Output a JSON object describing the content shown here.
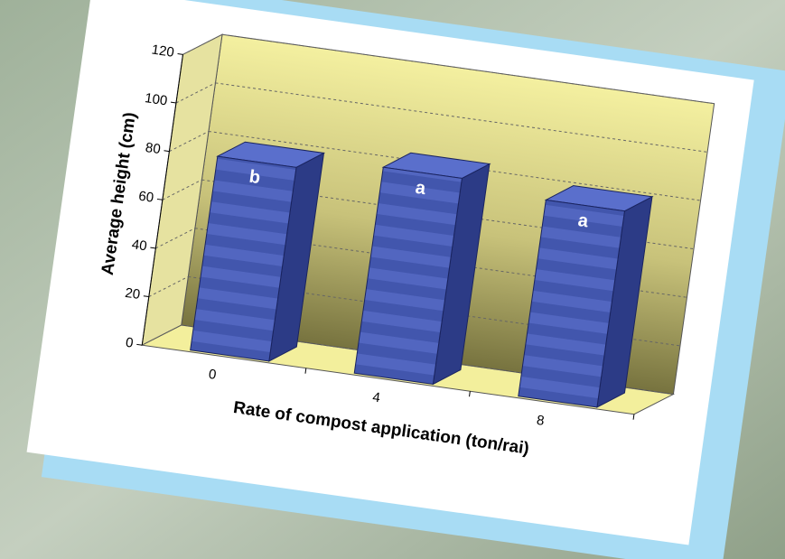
{
  "chart_data": {
    "type": "bar3d",
    "x_label": "Rate of compost application (ton/rai)",
    "y_label": "Average height (cm)",
    "categories": [
      "0",
      "4",
      "8"
    ],
    "values": [
      80,
      85,
      81
    ],
    "annotations": [
      "b",
      "a",
      "a"
    ],
    "color": "#4a5cb8",
    "ylim": [
      0,
      120
    ],
    "yticks": [
      0,
      20,
      40,
      60,
      80,
      100,
      120
    ],
    "grid": true
  }
}
